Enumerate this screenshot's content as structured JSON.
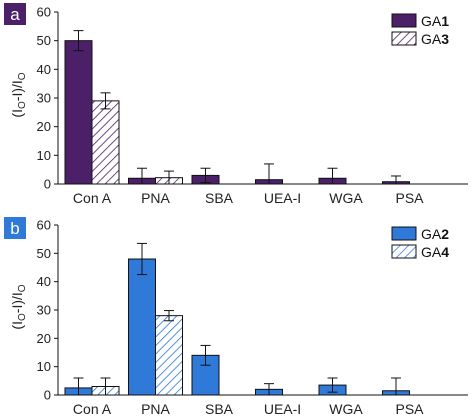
{
  "chart_data": [
    {
      "type": "bar",
      "panel_label": "a",
      "ylabel": "(I0-I)/I0",
      "ylim": [
        0,
        60
      ],
      "yticks": [
        0,
        10,
        20,
        30,
        40,
        50,
        60
      ],
      "categories": [
        "Con A",
        "PNA",
        "SBA",
        "UEA-I",
        "WGA",
        "PSA"
      ],
      "legend_position": "top-right",
      "series": [
        {
          "name": "GA1",
          "legend_prefix": "GA",
          "legend_number": "1",
          "pattern": "solid",
          "color": "#4b2069",
          "values": [
            50,
            2,
            3,
            1.5,
            2,
            0.8
          ],
          "errors": [
            3.5,
            3.5,
            2.5,
            5.5,
            3.5,
            2
          ]
        },
        {
          "name": "GA3",
          "legend_prefix": "GA",
          "legend_number": "3",
          "pattern": "hatched",
          "color": "#4b2069",
          "values": [
            29,
            2.2,
            null,
            null,
            null,
            null
          ],
          "errors": [
            2.8,
            2.3,
            null,
            null,
            null,
            null
          ]
        }
      ]
    },
    {
      "type": "bar",
      "panel_label": "b",
      "ylabel": "(I0-I)/I0",
      "ylim": [
        0,
        60
      ],
      "yticks": [
        0,
        10,
        20,
        30,
        40,
        50,
        60
      ],
      "categories": [
        "Con A",
        "PNA",
        "SBA",
        "UEA-I",
        "WGA",
        "PSA"
      ],
      "legend_position": "top-right",
      "series": [
        {
          "name": "GA2",
          "legend_prefix": "GA",
          "legend_number": "2",
          "pattern": "solid",
          "color": "#2f79d8",
          "values": [
            2.5,
            48,
            14,
            2,
            3.5,
            1.5
          ],
          "errors": [
            3.5,
            5.5,
            3.5,
            2,
            2.5,
            4.5
          ]
        },
        {
          "name": "GA4",
          "legend_prefix": "GA",
          "legend_number": "4",
          "pattern": "hatched",
          "color": "#2f79d8",
          "values": [
            3,
            28,
            null,
            null,
            null,
            null
          ],
          "errors": [
            3,
            1.8,
            null,
            null,
            null,
            null
          ]
        }
      ]
    }
  ],
  "colors": {
    "panel_a_accent": "#4b2069",
    "panel_b_accent": "#2f79d8",
    "axis": "#111111",
    "label_box_a": "#4b2069",
    "label_box_b": "#2f79d8"
  }
}
